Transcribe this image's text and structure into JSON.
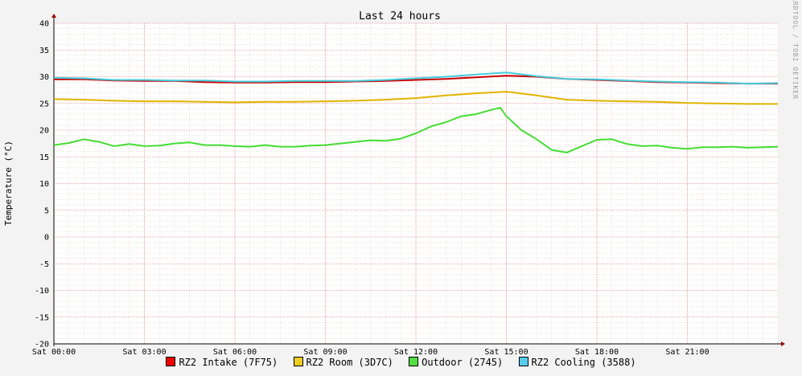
{
  "chart_data": {
    "type": "line",
    "title": "Last 24 hours",
    "ylabel": "Temperature (°C)",
    "xlabel": "",
    "ylim": [
      -20,
      40
    ],
    "yticks": [
      40,
      35,
      30,
      25,
      20,
      15,
      10,
      5,
      0,
      -5,
      -10,
      -15,
      -20
    ],
    "xlim": [
      0,
      24
    ],
    "xticks": [
      {
        "hour": 0,
        "label": "Sat 00:00"
      },
      {
        "hour": 3,
        "label": "Sat 03:00"
      },
      {
        "hour": 6,
        "label": "Sat 06:00"
      },
      {
        "hour": 9,
        "label": "Sat 09:00"
      },
      {
        "hour": 12,
        "label": "Sat 12:00"
      },
      {
        "hour": 15,
        "label": "Sat 15:00"
      },
      {
        "hour": 18,
        "label": "Sat 18:00"
      },
      {
        "hour": 21,
        "label": "Sat 21:00"
      }
    ],
    "grid": true,
    "legend_position": "bottom",
    "watermark": "RRDTOOL / TOBI OETIKER",
    "series": [
      {
        "name": "RZ2 Intake (7F75)",
        "color": "#cc0000",
        "x": [
          0,
          1,
          2,
          3,
          4,
          5,
          6,
          7,
          8,
          9,
          10,
          11,
          12,
          13,
          14,
          15,
          16,
          17,
          18,
          19,
          20,
          21,
          22,
          23,
          24
        ],
        "y": [
          29.5,
          29.5,
          29.3,
          29.2,
          29.2,
          29.0,
          28.9,
          28.9,
          29.0,
          29.0,
          29.1,
          29.2,
          29.4,
          29.6,
          29.9,
          30.2,
          30.0,
          29.6,
          29.4,
          29.2,
          29.0,
          28.9,
          28.8,
          28.7,
          28.7
        ]
      },
      {
        "name": "RZ2 Room (3D7C)",
        "color": "#e0b400",
        "x": [
          0,
          1,
          2,
          3,
          4,
          5,
          6,
          7,
          8,
          9,
          10,
          11,
          12,
          13,
          14,
          15,
          16,
          17,
          18,
          19,
          20,
          21,
          22,
          23,
          24
        ],
        "y": [
          25.8,
          25.7,
          25.5,
          25.4,
          25.4,
          25.3,
          25.2,
          25.3,
          25.3,
          25.4,
          25.5,
          25.7,
          26.0,
          26.5,
          26.9,
          27.2,
          26.5,
          25.7,
          25.5,
          25.4,
          25.3,
          25.1,
          25.0,
          24.9,
          24.9
        ]
      },
      {
        "name": "Outdoor (2745)",
        "color": "#44dd33",
        "x": [
          0,
          0.5,
          1,
          1.5,
          2,
          2.5,
          3,
          3.5,
          4,
          4.5,
          5,
          5.5,
          6,
          6.5,
          7,
          7.5,
          8,
          8.5,
          9,
          9.5,
          10,
          10.5,
          11,
          11.5,
          12,
          12.5,
          13,
          13.5,
          14,
          14.5,
          14.8,
          15,
          15.5,
          16,
          16.5,
          17,
          17.5,
          18,
          18.5,
          19,
          19.5,
          20,
          20.5,
          21,
          21.5,
          22,
          22.5,
          23,
          23.5,
          24
        ],
        "y": [
          17.2,
          17.6,
          18.3,
          17.8,
          17.0,
          17.4,
          17.0,
          17.1,
          17.5,
          17.7,
          17.2,
          17.2,
          17.0,
          16.9,
          17.2,
          16.9,
          16.9,
          17.1,
          17.2,
          17.5,
          17.8,
          18.1,
          18.0,
          18.4,
          19.4,
          20.7,
          21.5,
          22.6,
          23.0,
          23.8,
          24.2,
          22.6,
          20.0,
          18.3,
          16.3,
          15.8,
          17.0,
          18.2,
          18.3,
          17.4,
          17.0,
          17.1,
          16.7,
          16.5,
          16.8,
          16.8,
          16.9,
          16.7,
          16.8,
          16.9
        ]
      },
      {
        "name": "RZ2 Cooling (3588)",
        "color": "#44ccdd",
        "x": [
          0,
          1,
          2,
          3,
          4,
          5,
          6,
          7,
          8,
          9,
          10,
          11,
          12,
          13,
          14,
          15,
          16,
          17,
          18,
          19,
          20,
          21,
          22,
          23,
          24
        ],
        "y": [
          29.8,
          29.7,
          29.4,
          29.4,
          29.3,
          29.3,
          29.1,
          29.1,
          29.2,
          29.2,
          29.2,
          29.4,
          29.7,
          30.0,
          30.4,
          30.8,
          30.1,
          29.6,
          29.5,
          29.3,
          29.1,
          29.0,
          28.9,
          28.7,
          28.8
        ]
      }
    ]
  },
  "legend": [
    {
      "label": "RZ2 Intake (7F75)",
      "color": "#ee0000"
    },
    {
      "label": "RZ2 Room (3D7C)",
      "color": "#eecc22"
    },
    {
      "label": "Outdoor (2745)",
      "color": "#55dd44"
    },
    {
      "label": "RZ2 Cooling (3588)",
      "color": "#55ccee"
    }
  ]
}
